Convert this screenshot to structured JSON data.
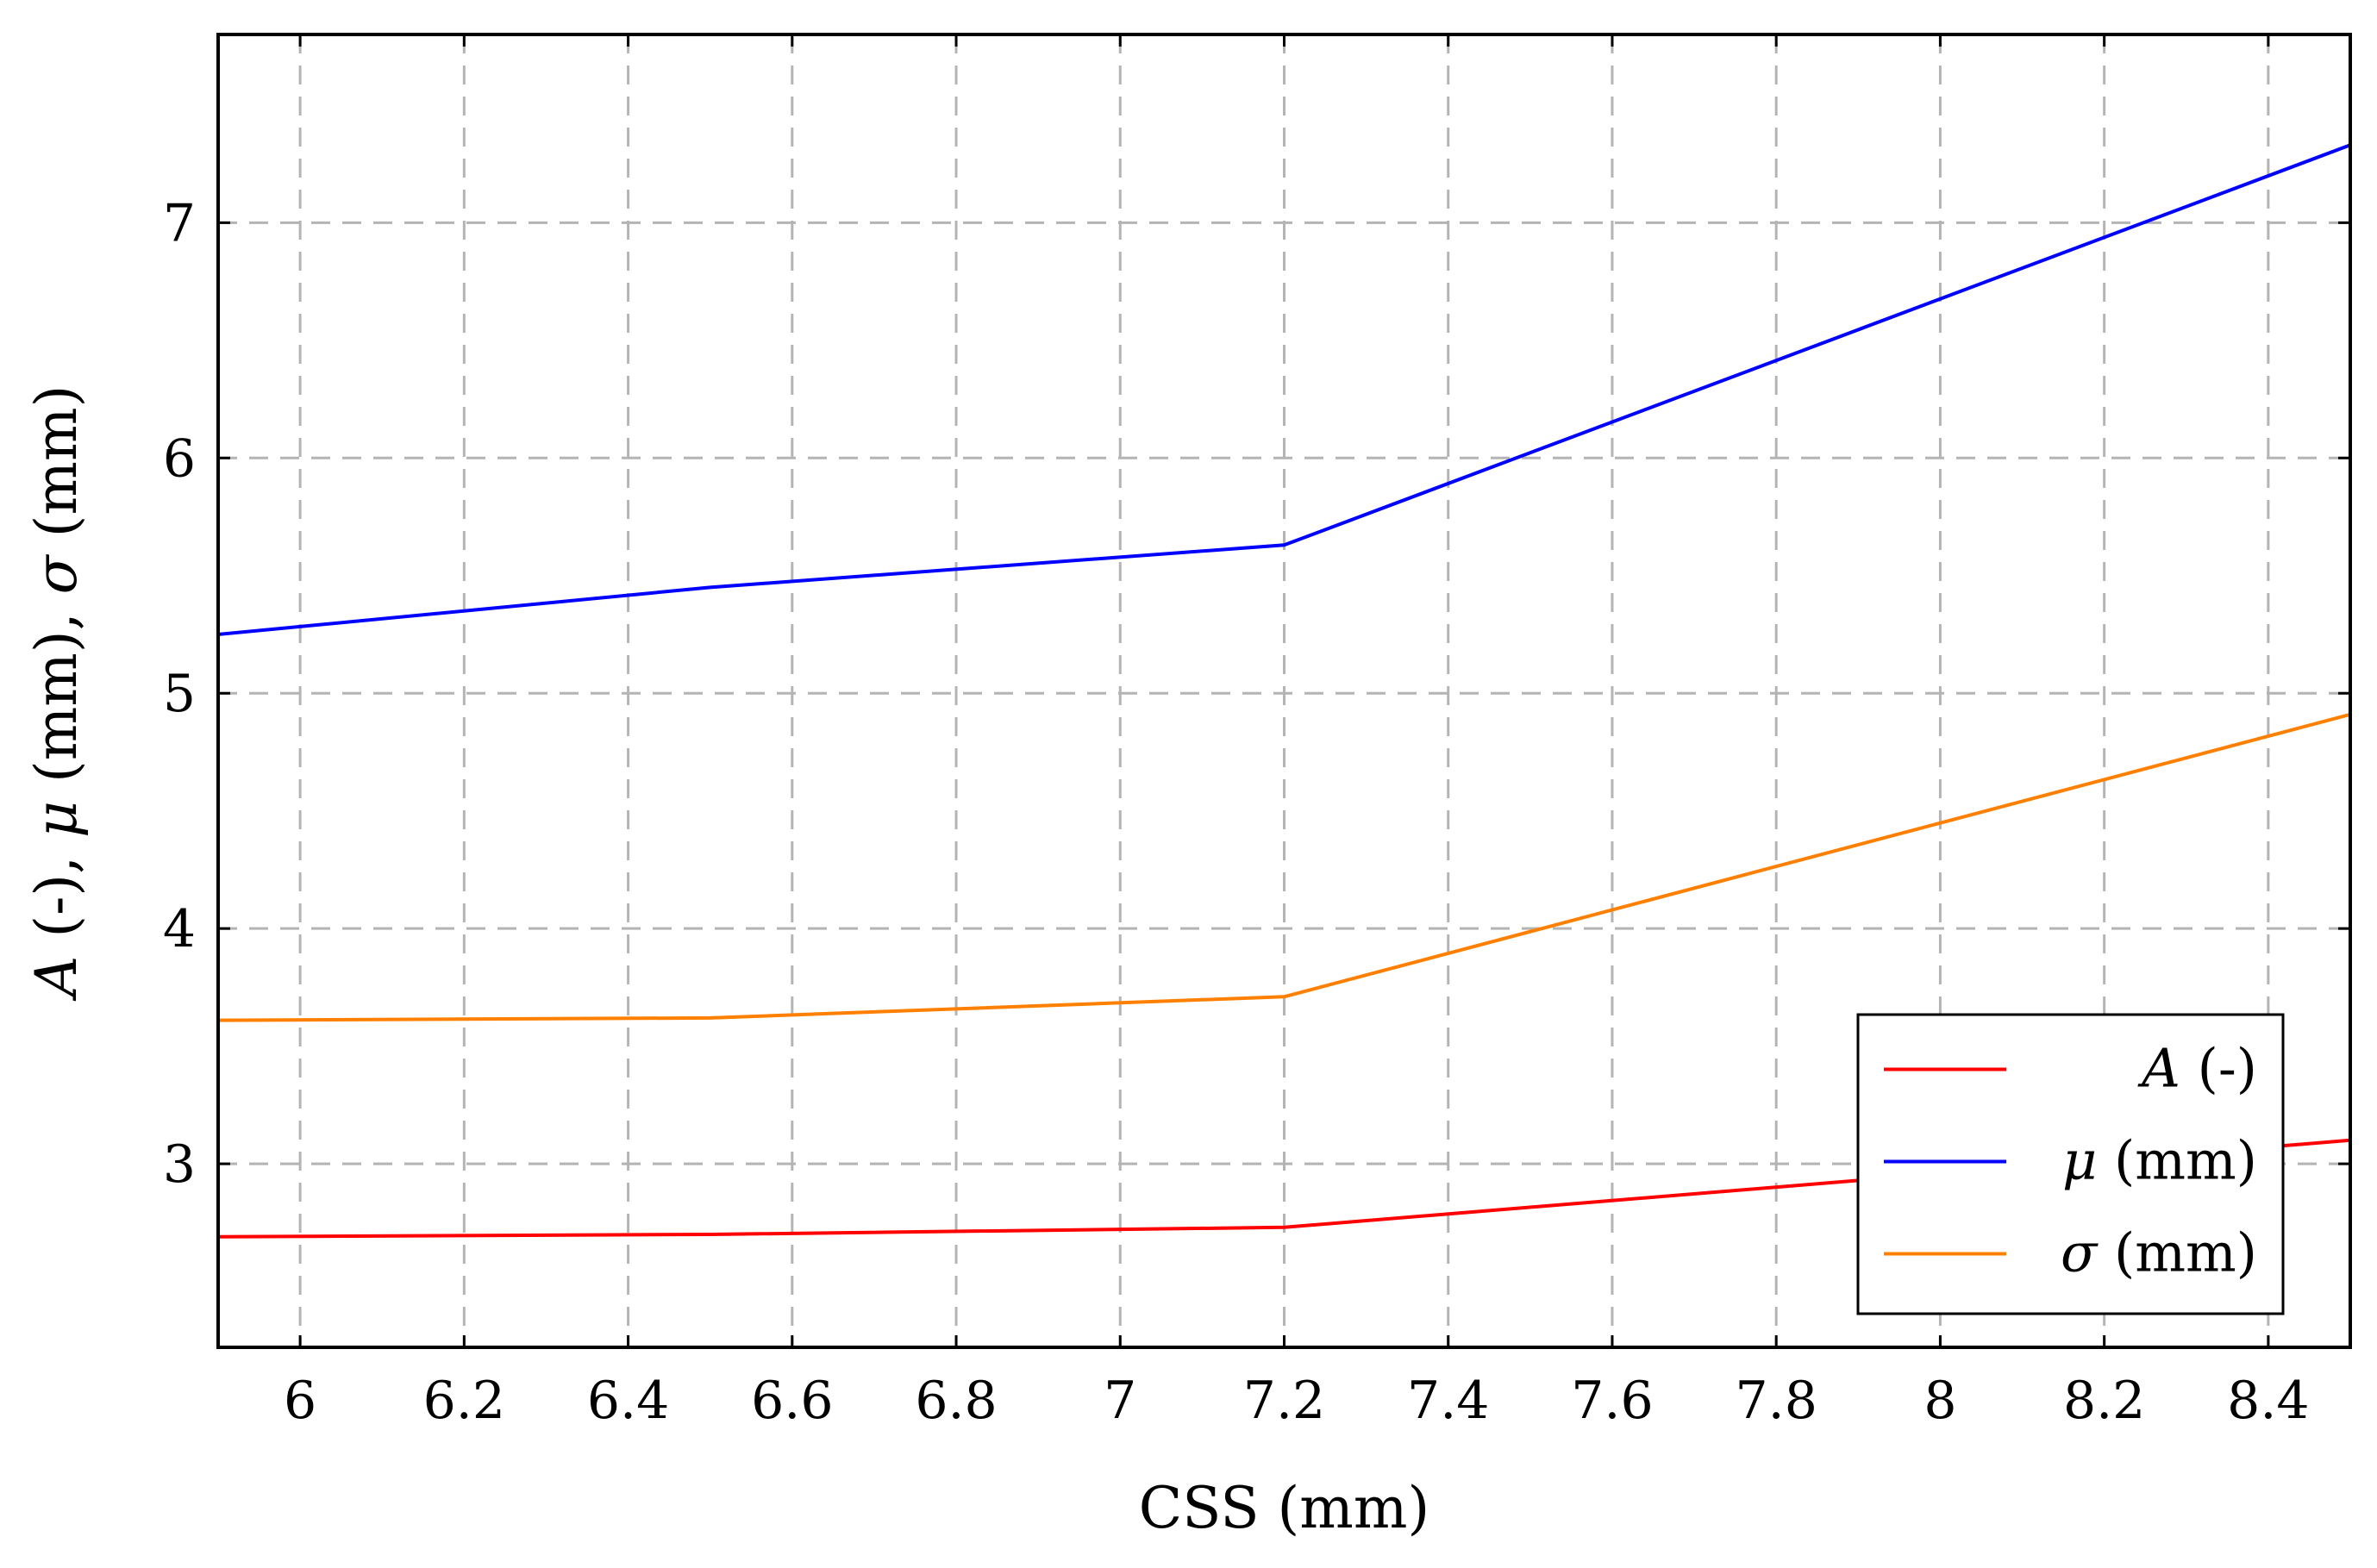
{
  "chart_data": {
    "type": "line",
    "xlabel": "CSS (mm)",
    "ylabel_parts": [
      {
        "t": "A",
        "italic": true
      },
      {
        "t": " (-), ",
        "italic": false
      },
      {
        "t": "μ",
        "italic": true
      },
      {
        "t": " (mm), ",
        "italic": false
      },
      {
        "t": "σ",
        "italic": true
      },
      {
        "t": " (mm)",
        "italic": false
      }
    ],
    "xlim": [
      5.9,
      8.5
    ],
    "ylim": [
      2.22,
      7.8
    ],
    "xticks": [
      6,
      6.2,
      6.4,
      6.6,
      6.8,
      7,
      7.2,
      7.4,
      7.6,
      7.8,
      8,
      8.2,
      8.4
    ],
    "xtick_labels": [
      "6",
      "6.2",
      "6.4",
      "6.6",
      "6.8",
      "7",
      "7.2",
      "7.4",
      "7.6",
      "7.8",
      "8",
      "8.2",
      "8.4"
    ],
    "yticks": [
      3,
      4,
      5,
      6,
      7
    ],
    "ytick_labels": [
      "3",
      "4",
      "5",
      "6",
      "7"
    ],
    "grid": true,
    "legend_position": "bottom-right",
    "series": [
      {
        "key": "A",
        "legend_parts": [
          {
            "t": "A",
            "italic": true
          },
          {
            "t": " (-)",
            "italic": false
          }
        ],
        "color": "#ff0000",
        "x": [
          5.9,
          6.5,
          7.2,
          8.5
        ],
        "y": [
          2.69,
          2.7,
          2.73,
          3.1
        ]
      },
      {
        "key": "mu",
        "legend_parts": [
          {
            "t": "μ",
            "italic": true
          },
          {
            "t": " (mm)",
            "italic": false
          }
        ],
        "color": "#0000ff",
        "x": [
          5.9,
          6.5,
          7.2,
          8.5
        ],
        "y": [
          5.25,
          5.45,
          5.63,
          7.33
        ]
      },
      {
        "key": "sigma",
        "legend_parts": [
          {
            "t": "σ",
            "italic": true
          },
          {
            "t": " (mm)",
            "italic": false
          }
        ],
        "color": "#ff8000",
        "x": [
          5.9,
          6.5,
          7.2,
          8.5
        ],
        "y": [
          3.61,
          3.62,
          3.71,
          4.91
        ]
      }
    ]
  }
}
